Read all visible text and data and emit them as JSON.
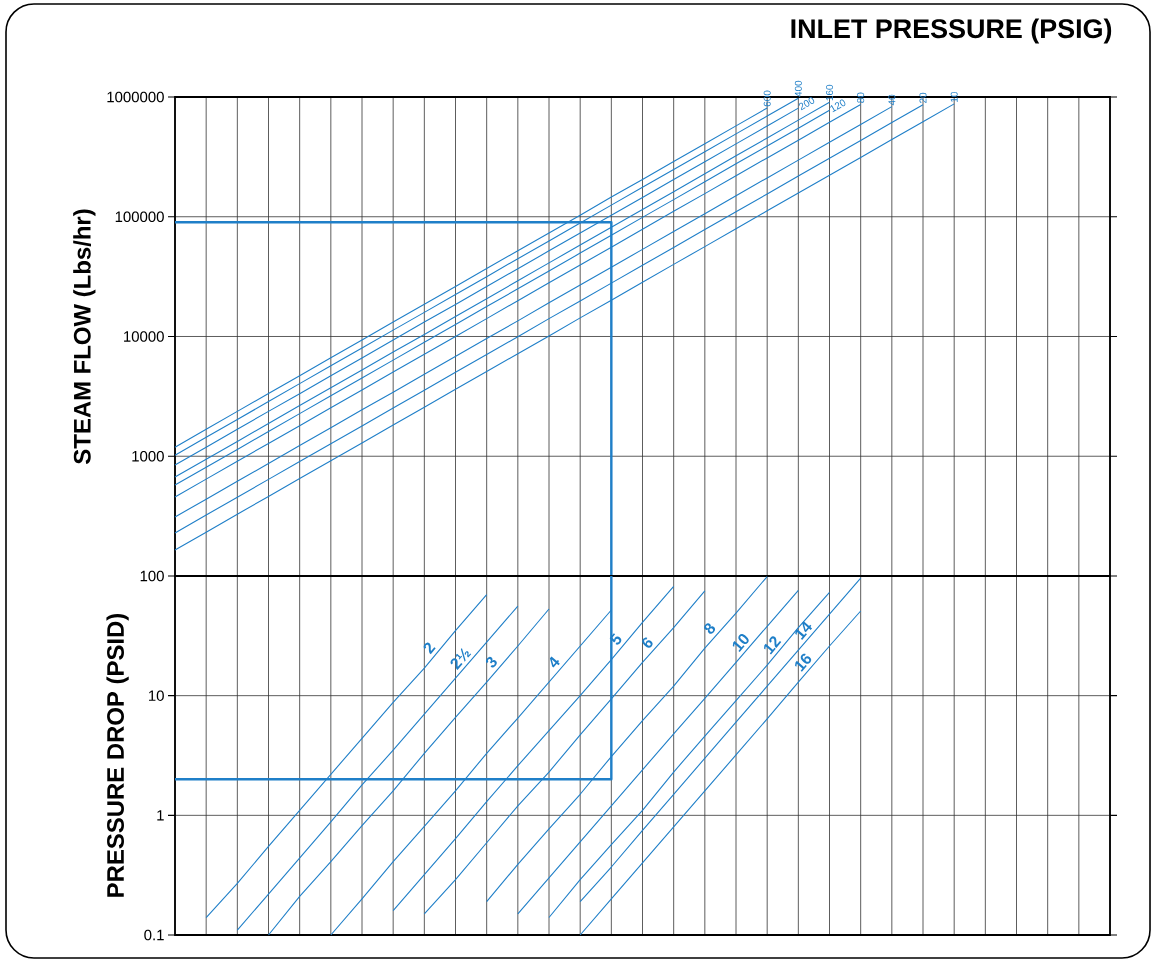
{
  "chart_data": [
    {
      "type": "line",
      "title": "INLET PRESSURE (PSIG)",
      "ylabel": "STEAM FLOW (Lbs/hr)",
      "log": "y",
      "grid": true,
      "tick_labels": "y",
      "categories": [
        null,
        null,
        null,
        null,
        null,
        null,
        null,
        null,
        null,
        null,
        null,
        null,
        null,
        null,
        null,
        null,
        null,
        null,
        null,
        null,
        null,
        null,
        null,
        null,
        null,
        null,
        null,
        null,
        null,
        null,
        null
      ],
      "ylim": [
        100,
        1000000
      ],
      "yticks": [
        1000,
        10000,
        100000,
        1000000
      ],
      "series": [
        {
          "name": "600",
          "color": "#1f7fc8",
          "values": [
            1190,
            1680,
            2370,
            3340,
            4710,
            6640,
            9350,
            13200,
            18600,
            26200,
            36900,
            52000,
            73300,
            103000,
            146000,
            205000,
            289000,
            407000,
            574000,
            809000,
            null,
            null,
            null,
            null,
            null,
            null,
            null,
            null,
            null,
            null,
            null
          ]
        },
        {
          "name": "400",
          "color": "#1f7fc8",
          "values": [
            1020,
            1440,
            2030,
            2860,
            4040,
            5690,
            8010,
            11300,
            15900,
            22400,
            31600,
            44600,
            62800,
            88500,
            125000,
            176000,
            248000,
            349000,
            492000,
            693000,
            977000,
            null,
            null,
            null,
            null,
            null,
            null,
            null,
            null,
            null,
            null
          ]
        },
        {
          "name": "200",
          "color": "#1f7fc8",
          "values": [
            845,
            1190,
            1680,
            2370,
            3330,
            4700,
            6620,
            9330,
            13200,
            18500,
            26100,
            36800,
            51900,
            73100,
            103000,
            145000,
            205000,
            288000,
            406000,
            573000,
            807000,
            null,
            null,
            null,
            null,
            null,
            null,
            null,
            null,
            null,
            null
          ]
        },
        {
          "name": "160",
          "color": "#1f7fc8",
          "values": [
            671,
            945,
            1330,
            1880,
            2650,
            3730,
            5260,
            7410,
            10400,
            14700,
            20700,
            29200,
            41200,
            58000,
            81800,
            115000,
            162000,
            229000,
            323000,
            455000,
            641000,
            903000,
            null,
            null,
            null,
            null,
            null,
            null,
            null,
            null,
            null
          ]
        },
        {
          "name": "120",
          "color": "#1f7fc8",
          "values": [
            575,
            810,
            1140,
            1610,
            2270,
            3200,
            4510,
            6350,
            8950,
            12600,
            17800,
            25000,
            35300,
            49700,
            70100,
            98800,
            139000,
            196000,
            277000,
            390000,
            549000,
            774000,
            null,
            null,
            null,
            null,
            null,
            null,
            null,
            null,
            null
          ]
        },
        {
          "name": "80",
          "color": "#1f7fc8",
          "values": [
            457,
            644,
            908,
            1280,
            1800,
            2540,
            3580,
            5050,
            7110,
            10000,
            14100,
            19900,
            28100,
            39500,
            55700,
            78500,
            111000,
            156000,
            220000,
            310000,
            436000,
            615000,
            867000,
            null,
            null,
            null,
            null,
            null,
            null,
            null,
            null
          ]
        },
        {
          "name": "40",
          "color": "#1f7fc8",
          "values": [
            311,
            438,
            618,
            870,
            1230,
            1730,
            2440,
            3430,
            4840,
            6820,
            9610,
            13500,
            19100,
            26900,
            37900,
            53400,
            75300,
            106000,
            150000,
            211000,
            297000,
            419000,
            590000,
            831000,
            null,
            null,
            null,
            null,
            null,
            null,
            null
          ]
        },
        {
          "name": "20",
          "color": "#1f7fc8",
          "values": [
            229,
            323,
            455,
            641,
            903,
            1270,
            1790,
            2530,
            3560,
            5020,
            7080,
            9970,
            14100,
            19800,
            27900,
            39300,
            55400,
            78100,
            110000,
            155000,
            219000,
            308000,
            434000,
            612000,
            863000,
            null,
            null,
            null,
            null,
            null,
            null
          ]
        },
        {
          "name": "10",
          "color": "#1f7fc8",
          "values": [
            165,
            232,
            328,
            462,
            651,
            917,
            1290,
            1820,
            2570,
            3620,
            5100,
            7190,
            10100,
            14300,
            20100,
            28400,
            40000,
            56300,
            79300,
            112000,
            158000,
            222000,
            313000,
            441000,
            622000,
            876000,
            null,
            null,
            null,
            null,
            null
          ]
        },
        {
          "type": "step",
          "color": "#1f7fc8",
          "values": [
            90000,
            90000,
            90000,
            90000,
            90000,
            90000,
            90000,
            90000,
            90000,
            90000,
            90000,
            90000,
            90000,
            90000,
            100,
            null,
            null,
            null,
            null,
            null,
            null,
            null,
            null,
            null,
            null,
            null,
            null,
            null,
            null,
            null,
            null
          ]
        }
      ]
    },
    {
      "type": "line",
      "ylabel": "PRESSURE DROP (PSID)",
      "log": "y",
      "grid": true,
      "tick_labels": "y",
      "categories": [
        null,
        null,
        null,
        null,
        null,
        null,
        null,
        null,
        null,
        null,
        null,
        null,
        null,
        null,
        null,
        null,
        null,
        null,
        null,
        null,
        null,
        null,
        null,
        null,
        null,
        null,
        null,
        null,
        null,
        null,
        null
      ],
      "ylim": [
        0.1,
        100
      ],
      "yticks": [
        0.1,
        1,
        10,
        100
      ],
      "series": [
        {
          "name": "2",
          "color": "#1f7fc8",
          "values": [
            null,
            0.14,
            0.27,
            0.55,
            1.1,
            2.2,
            4.4,
            8.8,
            17,
            35,
            70,
            null,
            null,
            null,
            null,
            null,
            null,
            null,
            null,
            null,
            null,
            null,
            null,
            null,
            null,
            null,
            null,
            null,
            null,
            null,
            null
          ]
        },
        {
          "name": "2½",
          "color": "#1f7fc8",
          "values": [
            null,
            null,
            0.11,
            0.22,
            0.44,
            0.88,
            1.8,
            3.5,
            7,
            14,
            28,
            56,
            null,
            null,
            null,
            null,
            null,
            null,
            null,
            null,
            null,
            null,
            null,
            null,
            null,
            null,
            null,
            null,
            null,
            null,
            null
          ]
        },
        {
          "name": "3",
          "color": "#1f7fc8",
          "values": [
            null,
            null,
            null,
            0.1,
            0.21,
            0.41,
            0.82,
            1.6,
            3.3,
            6.6,
            13,
            26,
            53,
            null,
            null,
            null,
            null,
            null,
            null,
            null,
            null,
            null,
            null,
            null,
            null,
            null,
            null,
            null,
            null,
            null,
            null
          ]
        },
        {
          "name": "4",
          "color": "#1f7fc8",
          "values": [
            null,
            null,
            null,
            null,
            null,
            0.1,
            0.2,
            0.41,
            0.81,
            1.6,
            3.3,
            6.5,
            13,
            26,
            52,
            null,
            null,
            null,
            null,
            null,
            null,
            null,
            null,
            null,
            null,
            null,
            null,
            null,
            null,
            null,
            null
          ]
        },
        {
          "name": "5",
          "color": "#1f7fc8",
          "values": [
            null,
            null,
            null,
            null,
            null,
            null,
            null,
            0.16,
            0.32,
            0.64,
            1.3,
            2.6,
            5.1,
            10,
            20,
            41,
            82,
            null,
            null,
            null,
            null,
            null,
            null,
            null,
            null,
            null,
            null,
            null,
            null,
            null,
            null
          ]
        },
        {
          "name": "6",
          "color": "#1f7fc8",
          "values": [
            null,
            null,
            null,
            null,
            null,
            null,
            null,
            null,
            0.15,
            0.29,
            0.59,
            1.2,
            2.3,
            4.7,
            9.4,
            19,
            37,
            75,
            null,
            null,
            null,
            null,
            null,
            null,
            null,
            null,
            null,
            null,
            null,
            null,
            null
          ]
        },
        {
          "name": "8",
          "color": "#1f7fc8",
          "values": [
            null,
            null,
            null,
            null,
            null,
            null,
            null,
            null,
            null,
            null,
            0.19,
            0.39,
            0.77,
            1.5,
            3.1,
            6.2,
            12,
            25,
            49,
            99,
            null,
            null,
            null,
            null,
            null,
            null,
            null,
            null,
            null,
            null,
            null
          ]
        },
        {
          "name": "10",
          "color": "#1f7fc8",
          "values": [
            null,
            null,
            null,
            null,
            null,
            null,
            null,
            null,
            null,
            null,
            null,
            0.15,
            0.3,
            0.6,
            1.2,
            2.4,
            4.8,
            9.5,
            19,
            38,
            76,
            null,
            null,
            null,
            null,
            null,
            null,
            null,
            null,
            null,
            null
          ]
        },
        {
          "name": "12",
          "color": "#1f7fc8",
          "values": [
            null,
            null,
            null,
            null,
            null,
            null,
            null,
            null,
            null,
            null,
            null,
            null,
            0.14,
            0.29,
            0.57,
            1.1,
            2.3,
            4.6,
            9.1,
            18,
            37,
            73,
            null,
            null,
            null,
            null,
            null,
            null,
            null,
            null,
            null
          ]
        },
        {
          "name": "14",
          "color": "#1f7fc8",
          "values": [
            null,
            null,
            null,
            null,
            null,
            null,
            null,
            null,
            null,
            null,
            null,
            null,
            null,
            0.19,
            0.37,
            0.75,
            1.5,
            3,
            6,
            12,
            24,
            48,
            96,
            null,
            null,
            null,
            null,
            null,
            null,
            null,
            null
          ]
        },
        {
          "name": "16",
          "color": "#1f7fc8",
          "values": [
            null,
            null,
            null,
            null,
            null,
            null,
            null,
            null,
            null,
            null,
            null,
            null,
            null,
            0.1,
            0.2,
            0.4,
            0.8,
            1.6,
            3.2,
            6.4,
            13,
            26,
            51,
            null,
            null,
            null,
            null,
            null,
            null,
            null,
            null
          ]
        },
        {
          "type": "step",
          "color": "#1f7fc8",
          "values": [
            2,
            2,
            2,
            2,
            2,
            2,
            2,
            2,
            2,
            2,
            2,
            2,
            2,
            2,
            100,
            null,
            null,
            null,
            null,
            null,
            null,
            null,
            null,
            null,
            null,
            null,
            null,
            null,
            null,
            null,
            null
          ]
        }
      ]
    }
  ]
}
